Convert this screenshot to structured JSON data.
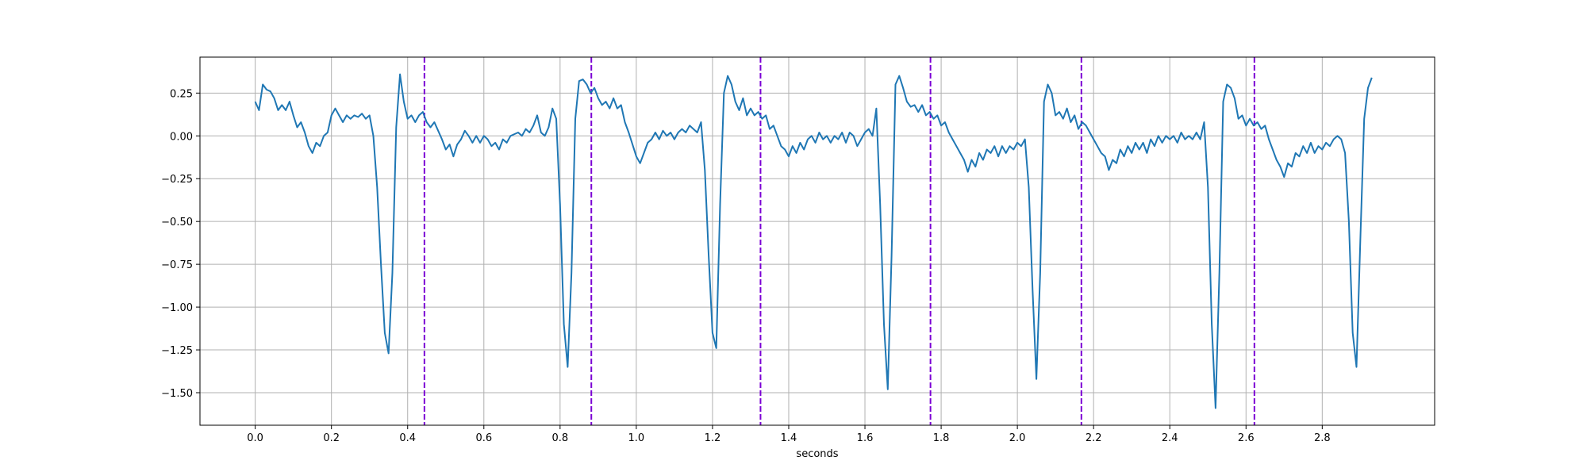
{
  "chart_data": {
    "type": "line",
    "title": "",
    "xlabel": "seconds",
    "ylabel": "",
    "xlim": [
      -0.145,
      3.095
    ],
    "ylim": [
      -1.69,
      0.46
    ],
    "grid": true,
    "legend": "none",
    "x_ticks": [
      "0.0",
      "0.2",
      "0.4",
      "0.6",
      "0.8",
      "1.0",
      "1.2",
      "1.4",
      "1.6",
      "1.8",
      "2.0",
      "2.2",
      "2.4",
      "2.6",
      "2.8"
    ],
    "y_ticks": [
      "0.25",
      "0.00",
      "−0.25",
      "−0.50",
      "−0.75",
      "−1.00",
      "−1.25",
      "−1.50"
    ],
    "series": [
      {
        "color": "#1f77b4",
        "points": [
          [
            0.0,
            0.2
          ],
          [
            0.01,
            0.15
          ],
          [
            0.02,
            0.3
          ],
          [
            0.03,
            0.27
          ],
          [
            0.04,
            0.26
          ],
          [
            0.05,
            0.22
          ],
          [
            0.06,
            0.15
          ],
          [
            0.07,
            0.18
          ],
          [
            0.08,
            0.15
          ],
          [
            0.09,
            0.2
          ],
          [
            0.1,
            0.12
          ],
          [
            0.11,
            0.05
          ],
          [
            0.12,
            0.08
          ],
          [
            0.13,
            0.02
          ],
          [
            0.14,
            -0.06
          ],
          [
            0.15,
            -0.1
          ],
          [
            0.16,
            -0.04
          ],
          [
            0.17,
            -0.06
          ],
          [
            0.18,
            0.0
          ],
          [
            0.19,
            0.02
          ],
          [
            0.2,
            0.12
          ],
          [
            0.21,
            0.16
          ],
          [
            0.22,
            0.12
          ],
          [
            0.23,
            0.08
          ],
          [
            0.24,
            0.12
          ],
          [
            0.25,
            0.1
          ],
          [
            0.26,
            0.12
          ],
          [
            0.27,
            0.11
          ],
          [
            0.28,
            0.13
          ],
          [
            0.29,
            0.1
          ],
          [
            0.3,
            0.12
          ],
          [
            0.31,
            0.0
          ],
          [
            0.32,
            -0.3
          ],
          [
            0.33,
            -0.75
          ],
          [
            0.34,
            -1.15
          ],
          [
            0.35,
            -1.27
          ],
          [
            0.36,
            -0.8
          ],
          [
            0.37,
            0.05
          ],
          [
            0.38,
            0.36
          ],
          [
            0.39,
            0.2
          ],
          [
            0.4,
            0.1
          ],
          [
            0.41,
            0.12
          ],
          [
            0.42,
            0.08
          ],
          [
            0.43,
            0.12
          ],
          [
            0.44,
            0.14
          ],
          [
            0.45,
            0.08
          ],
          [
            0.46,
            0.05
          ],
          [
            0.47,
            0.08
          ],
          [
            0.48,
            0.03
          ],
          [
            0.49,
            -0.02
          ],
          [
            0.5,
            -0.08
          ],
          [
            0.51,
            -0.05
          ],
          [
            0.52,
            -0.12
          ],
          [
            0.53,
            -0.05
          ],
          [
            0.54,
            -0.02
          ],
          [
            0.55,
            0.03
          ],
          [
            0.56,
            0.0
          ],
          [
            0.57,
            -0.04
          ],
          [
            0.58,
            0.0
          ],
          [
            0.59,
            -0.04
          ],
          [
            0.6,
            0.0
          ],
          [
            0.61,
            -0.02
          ],
          [
            0.62,
            -0.06
          ],
          [
            0.63,
            -0.04
          ],
          [
            0.64,
            -0.08
          ],
          [
            0.65,
            -0.02
          ],
          [
            0.66,
            -0.04
          ],
          [
            0.67,
            0.0
          ],
          [
            0.68,
            0.01
          ],
          [
            0.69,
            0.02
          ],
          [
            0.7,
            0.0
          ],
          [
            0.71,
            0.04
          ],
          [
            0.72,
            0.02
          ],
          [
            0.73,
            0.06
          ],
          [
            0.74,
            0.12
          ],
          [
            0.75,
            0.02
          ],
          [
            0.76,
            0.0
          ],
          [
            0.77,
            0.05
          ],
          [
            0.78,
            0.16
          ],
          [
            0.79,
            0.1
          ],
          [
            0.8,
            -0.4
          ],
          [
            0.81,
            -1.1
          ],
          [
            0.82,
            -1.35
          ],
          [
            0.83,
            -0.8
          ],
          [
            0.84,
            0.1
          ],
          [
            0.85,
            0.32
          ],
          [
            0.86,
            0.33
          ],
          [
            0.87,
            0.3
          ],
          [
            0.88,
            0.25
          ],
          [
            0.89,
            0.28
          ],
          [
            0.9,
            0.22
          ],
          [
            0.91,
            0.18
          ],
          [
            0.92,
            0.2
          ],
          [
            0.93,
            0.16
          ],
          [
            0.94,
            0.22
          ],
          [
            0.95,
            0.16
          ],
          [
            0.96,
            0.18
          ],
          [
            0.97,
            0.08
          ],
          [
            0.98,
            0.02
          ],
          [
            0.99,
            -0.05
          ],
          [
            1.0,
            -0.12
          ],
          [
            1.01,
            -0.16
          ],
          [
            1.02,
            -0.1
          ],
          [
            1.03,
            -0.04
          ],
          [
            1.04,
            -0.02
          ],
          [
            1.05,
            0.02
          ],
          [
            1.06,
            -0.02
          ],
          [
            1.07,
            0.03
          ],
          [
            1.08,
            0.0
          ],
          [
            1.09,
            0.02
          ],
          [
            1.1,
            -0.02
          ],
          [
            1.11,
            0.02
          ],
          [
            1.12,
            0.04
          ],
          [
            1.13,
            0.02
          ],
          [
            1.14,
            0.06
          ],
          [
            1.15,
            0.04
          ],
          [
            1.16,
            0.02
          ],
          [
            1.17,
            0.08
          ],
          [
            1.18,
            -0.2
          ],
          [
            1.19,
            -0.7
          ],
          [
            1.2,
            -1.15
          ],
          [
            1.21,
            -1.24
          ],
          [
            1.22,
            -0.4
          ],
          [
            1.23,
            0.25
          ],
          [
            1.24,
            0.35
          ],
          [
            1.25,
            0.3
          ],
          [
            1.26,
            0.2
          ],
          [
            1.27,
            0.15
          ],
          [
            1.28,
            0.22
          ],
          [
            1.29,
            0.12
          ],
          [
            1.3,
            0.16
          ],
          [
            1.31,
            0.12
          ],
          [
            1.32,
            0.14
          ],
          [
            1.33,
            0.1
          ],
          [
            1.34,
            0.12
          ],
          [
            1.35,
            0.04
          ],
          [
            1.36,
            0.06
          ],
          [
            1.37,
            0.0
          ],
          [
            1.38,
            -0.06
          ],
          [
            1.39,
            -0.08
          ],
          [
            1.4,
            -0.12
          ],
          [
            1.41,
            -0.06
          ],
          [
            1.42,
            -0.1
          ],
          [
            1.43,
            -0.04
          ],
          [
            1.44,
            -0.08
          ],
          [
            1.45,
            -0.02
          ],
          [
            1.46,
            0.0
          ],
          [
            1.47,
            -0.04
          ],
          [
            1.48,
            0.02
          ],
          [
            1.49,
            -0.02
          ],
          [
            1.5,
            0.0
          ],
          [
            1.51,
            -0.04
          ],
          [
            1.52,
            0.0
          ],
          [
            1.53,
            -0.02
          ],
          [
            1.54,
            0.02
          ],
          [
            1.55,
            -0.04
          ],
          [
            1.56,
            0.02
          ],
          [
            1.57,
            0.0
          ],
          [
            1.58,
            -0.06
          ],
          [
            1.59,
            -0.02
          ],
          [
            1.6,
            0.02
          ],
          [
            1.61,
            0.04
          ],
          [
            1.62,
            0.0
          ],
          [
            1.63,
            0.16
          ],
          [
            1.64,
            -0.4
          ],
          [
            1.65,
            -1.1
          ],
          [
            1.66,
            -1.48
          ],
          [
            1.67,
            -0.7
          ],
          [
            1.68,
            0.3
          ],
          [
            1.69,
            0.35
          ],
          [
            1.7,
            0.28
          ],
          [
            1.71,
            0.2
          ],
          [
            1.72,
            0.17
          ],
          [
            1.73,
            0.18
          ],
          [
            1.74,
            0.14
          ],
          [
            1.75,
            0.18
          ],
          [
            1.76,
            0.12
          ],
          [
            1.77,
            0.14
          ],
          [
            1.78,
            0.1
          ],
          [
            1.79,
            0.12
          ],
          [
            1.8,
            0.06
          ],
          [
            1.81,
            0.08
          ],
          [
            1.82,
            0.02
          ],
          [
            1.83,
            -0.02
          ],
          [
            1.84,
            -0.06
          ],
          [
            1.85,
            -0.1
          ],
          [
            1.86,
            -0.14
          ],
          [
            1.87,
            -0.21
          ],
          [
            1.88,
            -0.14
          ],
          [
            1.89,
            -0.18
          ],
          [
            1.9,
            -0.1
          ],
          [
            1.91,
            -0.14
          ],
          [
            1.92,
            -0.08
          ],
          [
            1.93,
            -0.1
          ],
          [
            1.94,
            -0.06
          ],
          [
            1.95,
            -0.12
          ],
          [
            1.96,
            -0.06
          ],
          [
            1.97,
            -0.1
          ],
          [
            1.98,
            -0.06
          ],
          [
            1.99,
            -0.08
          ],
          [
            2.0,
            -0.04
          ],
          [
            2.01,
            -0.06
          ],
          [
            2.02,
            -0.02
          ],
          [
            2.03,
            -0.3
          ],
          [
            2.04,
            -0.9
          ],
          [
            2.05,
            -1.42
          ],
          [
            2.06,
            -0.8
          ],
          [
            2.07,
            0.2
          ],
          [
            2.08,
            0.3
          ],
          [
            2.09,
            0.25
          ],
          [
            2.1,
            0.12
          ],
          [
            2.11,
            0.14
          ],
          [
            2.12,
            0.1
          ],
          [
            2.13,
            0.16
          ],
          [
            2.14,
            0.08
          ],
          [
            2.15,
            0.12
          ],
          [
            2.16,
            0.04
          ],
          [
            2.17,
            0.08
          ],
          [
            2.18,
            0.06
          ],
          [
            2.19,
            0.02
          ],
          [
            2.2,
            -0.02
          ],
          [
            2.21,
            -0.06
          ],
          [
            2.22,
            -0.1
          ],
          [
            2.23,
            -0.12
          ],
          [
            2.24,
            -0.2
          ],
          [
            2.25,
            -0.14
          ],
          [
            2.26,
            -0.16
          ],
          [
            2.27,
            -0.08
          ],
          [
            2.28,
            -0.12
          ],
          [
            2.29,
            -0.06
          ],
          [
            2.3,
            -0.1
          ],
          [
            2.31,
            -0.04
          ],
          [
            2.32,
            -0.08
          ],
          [
            2.33,
            -0.04
          ],
          [
            2.34,
            -0.1
          ],
          [
            2.35,
            -0.02
          ],
          [
            2.36,
            -0.06
          ],
          [
            2.37,
            0.0
          ],
          [
            2.38,
            -0.04
          ],
          [
            2.39,
            0.0
          ],
          [
            2.4,
            -0.02
          ],
          [
            2.41,
            0.0
          ],
          [
            2.42,
            -0.04
          ],
          [
            2.43,
            0.02
          ],
          [
            2.44,
            -0.02
          ],
          [
            2.45,
            0.0
          ],
          [
            2.46,
            -0.02
          ],
          [
            2.47,
            0.02
          ],
          [
            2.48,
            -0.02
          ],
          [
            2.49,
            0.08
          ],
          [
            2.5,
            -0.3
          ],
          [
            2.51,
            -1.1
          ],
          [
            2.52,
            -1.59
          ],
          [
            2.53,
            -0.8
          ],
          [
            2.54,
            0.2
          ],
          [
            2.55,
            0.3
          ],
          [
            2.56,
            0.28
          ],
          [
            2.57,
            0.22
          ],
          [
            2.58,
            0.1
          ],
          [
            2.59,
            0.12
          ],
          [
            2.6,
            0.06
          ],
          [
            2.61,
            0.1
          ],
          [
            2.62,
            0.06
          ],
          [
            2.63,
            0.08
          ],
          [
            2.64,
            0.04
          ],
          [
            2.65,
            0.06
          ],
          [
            2.66,
            -0.02
          ],
          [
            2.67,
            -0.08
          ],
          [
            2.68,
            -0.14
          ],
          [
            2.69,
            -0.18
          ],
          [
            2.7,
            -0.24
          ],
          [
            2.71,
            -0.16
          ],
          [
            2.72,
            -0.18
          ],
          [
            2.73,
            -0.1
          ],
          [
            2.74,
            -0.12
          ],
          [
            2.75,
            -0.06
          ],
          [
            2.76,
            -0.1
          ],
          [
            2.77,
            -0.04
          ],
          [
            2.78,
            -0.1
          ],
          [
            2.79,
            -0.06
          ],
          [
            2.8,
            -0.08
          ],
          [
            2.81,
            -0.04
          ],
          [
            2.82,
            -0.06
          ],
          [
            2.83,
            -0.02
          ],
          [
            2.84,
            0.0
          ],
          [
            2.85,
            -0.02
          ],
          [
            2.86,
            -0.1
          ],
          [
            2.87,
            -0.5
          ],
          [
            2.88,
            -1.15
          ],
          [
            2.89,
            -1.35
          ],
          [
            2.9,
            -0.6
          ],
          [
            2.91,
            0.1
          ],
          [
            2.92,
            0.28
          ],
          [
            2.93,
            0.34
          ]
        ]
      }
    ],
    "vlines": {
      "color": "#7b00d4",
      "style": "dashed",
      "x": [
        0.444,
        0.882,
        1.326,
        1.772,
        2.168,
        2.622
      ]
    }
  }
}
